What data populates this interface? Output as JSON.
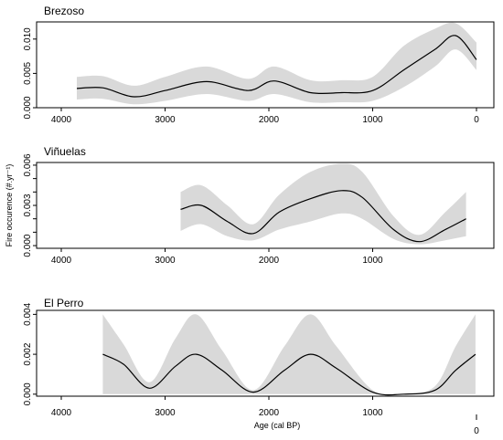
{
  "chart_data": [
    {
      "type": "area",
      "title": "Brezoso",
      "xlabel": "",
      "ylabel": "",
      "xlim": [
        4150,
        -20
      ],
      "ylim": [
        0,
        0.0125
      ],
      "x_ticks": [
        4000,
        3000,
        2000,
        1000,
        0
      ],
      "y_ticks": [
        0.0,
        0.005,
        0.01
      ],
      "y_tick_labels": [
        "0.000",
        "0.005",
        "0.010"
      ],
      "series": [
        {
          "role": "mean",
          "x": [
            3850,
            3600,
            3300,
            3000,
            2600,
            2200,
            1950,
            1600,
            1300,
            1000,
            700,
            400,
            200,
            0
          ],
          "values": [
            0.0028,
            0.0029,
            0.0016,
            0.0025,
            0.0038,
            0.0025,
            0.0039,
            0.0022,
            0.0022,
            0.0025,
            0.0055,
            0.0085,
            0.0105,
            0.007
          ]
        },
        {
          "role": "upper",
          "x": [
            3850,
            3600,
            3300,
            3000,
            2600,
            2200,
            1950,
            1600,
            1300,
            1000,
            700,
            400,
            200,
            0
          ],
          "values": [
            0.0045,
            0.0046,
            0.0032,
            0.0045,
            0.006,
            0.0042,
            0.006,
            0.004,
            0.004,
            0.0045,
            0.009,
            0.0115,
            0.0123,
            0.0095
          ]
        },
        {
          "role": "lower",
          "x": [
            3850,
            3600,
            3300,
            3000,
            2600,
            2200,
            1950,
            1600,
            1300,
            1000,
            700,
            400,
            200,
            0
          ],
          "values": [
            0.0012,
            0.0013,
            0.0005,
            0.001,
            0.002,
            0.001,
            0.002,
            0.0008,
            0.0008,
            0.001,
            0.003,
            0.006,
            0.0085,
            0.0055
          ]
        }
      ]
    },
    {
      "type": "area",
      "title": "Viñuelas",
      "xlabel": "",
      "ylabel": "Fire occurence (#.yr⁻¹)",
      "xlim": [
        4150,
        -20
      ],
      "ylim": [
        -0.0002,
        0.0062
      ],
      "x_ticks": [
        4000,
        3000,
        2000,
        1000
      ],
      "y_ticks": [
        0.0,
        0.001,
        0.002,
        0.003,
        0.004,
        0.005,
        0.006
      ],
      "y_tick_labels": [
        "0.000",
        "",
        "",
        "0.003",
        "",
        "",
        "0.006"
      ],
      "series": [
        {
          "role": "mean",
          "x": [
            2850,
            2650,
            2400,
            2150,
            1900,
            1600,
            1300,
            1100,
            800,
            550,
            300,
            100
          ],
          "values": [
            0.0027,
            0.003,
            0.0018,
            0.0009,
            0.0025,
            0.0035,
            0.0041,
            0.0036,
            0.0012,
            0.0003,
            0.0012,
            0.002
          ]
        },
        {
          "role": "upper",
          "x": [
            2850,
            2650,
            2400,
            2150,
            1900,
            1600,
            1300,
            1100,
            800,
            550,
            300,
            100
          ],
          "values": [
            0.004,
            0.0045,
            0.003,
            0.0016,
            0.0038,
            0.0055,
            0.0061,
            0.0055,
            0.0022,
            0.0008,
            0.0025,
            0.004
          ]
        },
        {
          "role": "lower",
          "x": [
            2850,
            2650,
            2400,
            2150,
            1900,
            1600,
            1300,
            1100,
            800,
            550,
            300,
            100
          ],
          "values": [
            0.0011,
            0.0016,
            0.0007,
            0.0004,
            0.0012,
            0.0018,
            0.0024,
            0.002,
            0.0005,
            0.0001,
            0.0004,
            0.0007
          ]
        }
      ]
    },
    {
      "type": "area",
      "title": "El Perro",
      "xlabel": "Age (cal BP)",
      "ylabel": "",
      "xlim": [
        4150,
        -20
      ],
      "ylim": [
        -0.0001,
        0.0042
      ],
      "x_ticks": [
        4000,
        3000,
        2000,
        1000
      ],
      "extra_tick_label": "0",
      "y_ticks": [
        0.0,
        0.002,
        0.004
      ],
      "y_tick_labels": [
        "0.000",
        "0.002",
        "0.004"
      ],
      "series": [
        {
          "role": "mean",
          "x": [
            3600,
            3400,
            3150,
            2900,
            2700,
            2450,
            2150,
            1850,
            1600,
            1350,
            1000,
            700,
            400,
            200,
            10
          ],
          "values": [
            0.002,
            0.0015,
            0.0003,
            0.0014,
            0.002,
            0.0012,
            0.0001,
            0.0012,
            0.002,
            0.0013,
            0.0001,
            0.0,
            0.0002,
            0.0012,
            0.002
          ]
        },
        {
          "role": "upper",
          "x": [
            3600,
            3400,
            3150,
            2900,
            2700,
            2450,
            2150,
            1850,
            1600,
            1350,
            1000,
            700,
            400,
            200,
            10
          ],
          "values": [
            0.004,
            0.0025,
            0.0006,
            0.0028,
            0.004,
            0.0022,
            0.0002,
            0.0024,
            0.004,
            0.0024,
            0.0002,
            0.0,
            0.0004,
            0.0024,
            0.004
          ]
        },
        {
          "role": "lower",
          "x": [
            3600,
            3400,
            3150,
            2900,
            2700,
            2450,
            2150,
            1850,
            1600,
            1350,
            1000,
            700,
            400,
            200,
            10
          ],
          "values": [
            0.0,
            0.0,
            0.0,
            0.0,
            0.0,
            0.0,
            0.0,
            0.0,
            0.0,
            0.0,
            0.0,
            0.0,
            0.0,
            0.0,
            0.0
          ]
        }
      ]
    }
  ]
}
